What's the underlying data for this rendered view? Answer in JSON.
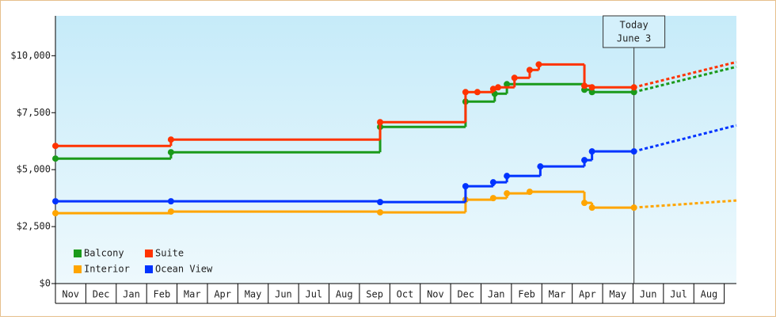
{
  "chart_data": {
    "type": "step",
    "xlim": [
      0,
      22.4
    ],
    "ylim": [
      0,
      11750
    ],
    "xticks": [
      {
        "value": 0,
        "label": "Nov"
      },
      {
        "value": 1,
        "label": "Dec"
      },
      {
        "value": 2,
        "label": "Jan"
      },
      {
        "value": 3,
        "label": "Feb"
      },
      {
        "value": 4,
        "label": "Mar"
      },
      {
        "value": 5,
        "label": "Apr"
      },
      {
        "value": 6,
        "label": "May"
      },
      {
        "value": 7,
        "label": "Jun"
      },
      {
        "value": 8,
        "label": "Jul"
      },
      {
        "value": 9,
        "label": "Aug"
      },
      {
        "value": 10,
        "label": "Sep"
      },
      {
        "value": 11,
        "label": "Oct"
      },
      {
        "value": 12,
        "label": "Nov"
      },
      {
        "value": 13,
        "label": "Dec"
      },
      {
        "value": 14,
        "label": "Jan"
      },
      {
        "value": 15,
        "label": "Feb"
      },
      {
        "value": 16,
        "label": "Mar"
      },
      {
        "value": 17,
        "label": "Apr"
      },
      {
        "value": 18,
        "label": "May"
      },
      {
        "value": 19,
        "label": "Jun"
      },
      {
        "value": 20,
        "label": "Jul"
      },
      {
        "value": 21,
        "label": "Aug"
      }
    ],
    "yticks": [
      {
        "value": 0,
        "label": "$0"
      },
      {
        "value": 2500,
        "label": "$2,500"
      },
      {
        "value": 5000,
        "label": "$5,000"
      },
      {
        "value": 7500,
        "label": "$7,500"
      },
      {
        "value": 10000,
        "label": "$10,000"
      }
    ],
    "annotation": {
      "x": 19.03,
      "lines": [
        "Today",
        "June 3"
      ]
    },
    "series": [
      {
        "name": "Balcony",
        "color": "#1a9a1a",
        "x": [
          0,
          3.8,
          10.68,
          13.49,
          14.45,
          14.85,
          17.4,
          17.65,
          19.03
        ],
        "values": [
          5486,
          5764,
          6875,
          7986,
          8333,
          8750,
          8507,
          8403,
          8403
        ],
        "forecast_x": [
          19.03,
          22.4
        ],
        "forecast_values": [
          8403,
          9514
        ]
      },
      {
        "name": "Suite",
        "color": "#ff3300",
        "x": [
          0,
          3.8,
          10.68,
          13.49,
          13.88,
          14.4,
          14.56,
          15.1,
          15.6,
          15.9,
          17.4,
          17.65,
          19.03
        ],
        "values": [
          6042,
          6320,
          7083,
          8403,
          8403,
          8542,
          8611,
          9028,
          9375,
          9618,
          8680,
          8611,
          8611
        ],
        "forecast_x": [
          19.03,
          22.4
        ],
        "forecast_values": [
          8611,
          9722
        ]
      },
      {
        "name": "Interior",
        "color": "#ffa500",
        "x": [
          0,
          3.8,
          10.68,
          13.49,
          14.4,
          14.85,
          15.6,
          17.4,
          17.65,
          19.03
        ],
        "values": [
          3090,
          3160,
          3125,
          3681,
          3750,
          3958,
          4028,
          3542,
          3333,
          3333
        ],
        "forecast_x": [
          19.03,
          22.4
        ],
        "forecast_values": [
          3333,
          3646
        ]
      },
      {
        "name": "Ocean View",
        "color": "#0033ff",
        "x": [
          0,
          3.8,
          10.68,
          13.49,
          14.4,
          14.85,
          15.95,
          17.4,
          17.65,
          19.03
        ],
        "values": [
          3611,
          3611,
          3576,
          4271,
          4444,
          4722,
          5139,
          5417,
          5799,
          5799
        ],
        "forecast_x": [
          19.03,
          22.4
        ],
        "forecast_values": [
          5799,
          6944
        ]
      }
    ]
  }
}
